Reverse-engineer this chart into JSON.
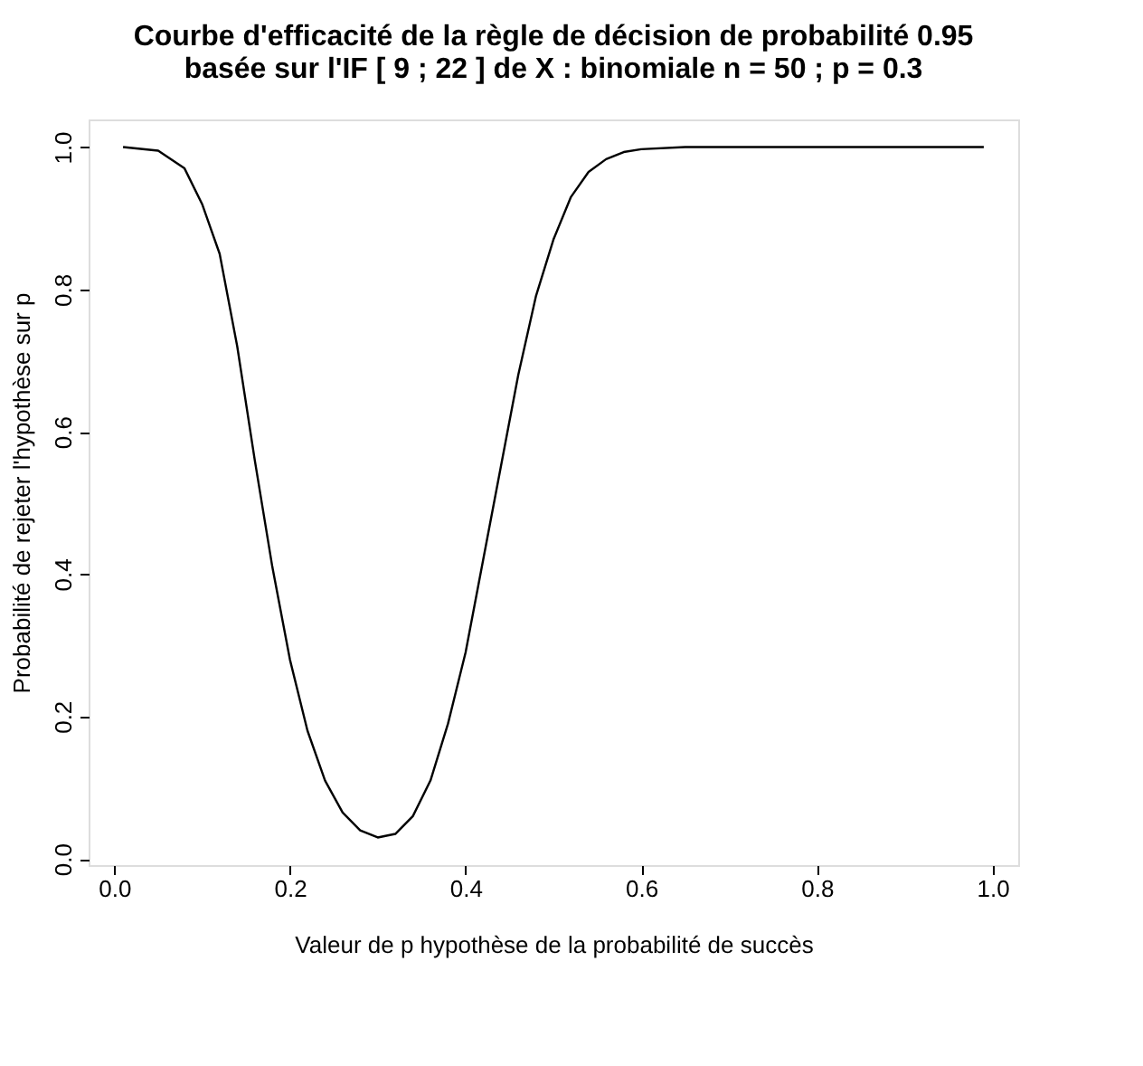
{
  "chart_data": {
    "type": "line",
    "title": [
      "Courbe d'efficacité de la règle de décision de probabilité 0.95",
      "basée sur l'IF [ 9 ; 22 ] de X : binomiale n = 50 ; p =  0.3"
    ],
    "xlabel": "Valeur de p hypothèse de la probabilité de succès",
    "ylabel": "Probabilité de rejeter l'hypothèse sur p",
    "x": [
      0.01,
      0.05,
      0.08,
      0.1,
      0.12,
      0.14,
      0.16,
      0.18,
      0.2,
      0.22,
      0.24,
      0.26,
      0.28,
      0.3,
      0.32,
      0.34,
      0.36,
      0.38,
      0.4,
      0.42,
      0.44,
      0.46,
      0.48,
      0.5,
      0.52,
      0.54,
      0.56,
      0.58,
      0.6,
      0.65,
      0.99
    ],
    "series": [
      {
        "color": "#000000",
        "values": [
          1.0,
          0.995,
          0.97,
          0.92,
          0.85,
          0.72,
          0.56,
          0.41,
          0.28,
          0.18,
          0.11,
          0.065,
          0.04,
          0.03,
          0.035,
          0.06,
          0.11,
          0.19,
          0.29,
          0.42,
          0.55,
          0.68,
          0.79,
          0.87,
          0.93,
          0.965,
          0.983,
          0.993,
          0.997,
          1.0,
          1.0
        ]
      }
    ],
    "xlim": [
      -0.0292,
      1.0292
    ],
    "ylim": [
      -0.0088,
      1.0388
    ],
    "xticks": [
      {
        "value": 0,
        "label": "0.0"
      },
      0.2,
      0.4,
      0.6,
      0.8,
      {
        "value": 1,
        "label": "1.0"
      }
    ],
    "yticks": [
      {
        "value": 0,
        "label": "0.0"
      },
      0.2,
      0.4,
      0.6,
      0.8,
      {
        "value": 1,
        "label": "1.0"
      }
    ],
    "grid": false,
    "legend": false,
    "marker": "none",
    "line_style": "solid"
  }
}
